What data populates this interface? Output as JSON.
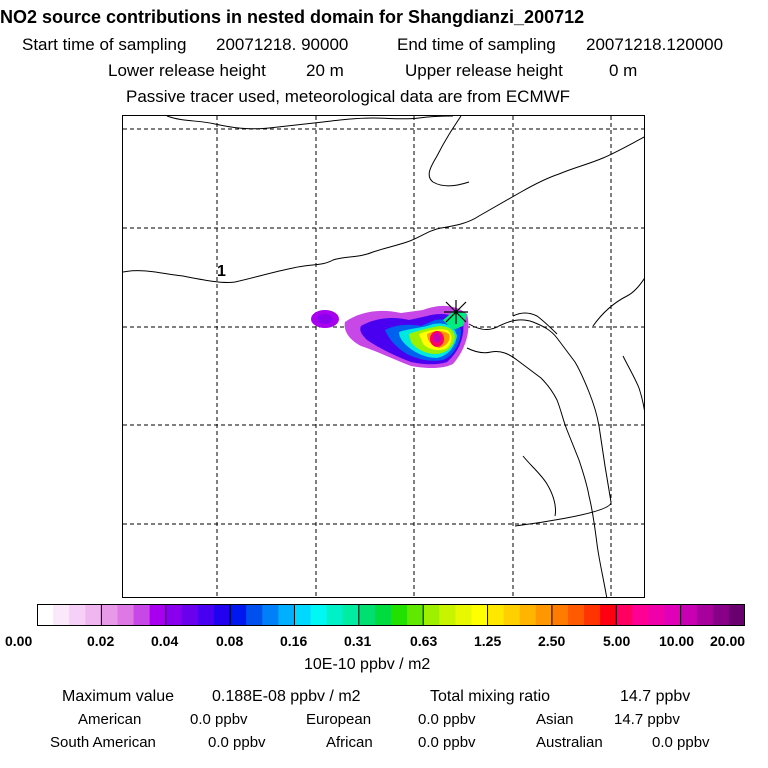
{
  "title": "NO2 source contributions in nested domain for Shangdianzi_200712",
  "header": {
    "start_label": "Start time of sampling",
    "start_value": "20071218. 90000",
    "end_label": "End time of sampling",
    "end_value": "20071218.120000",
    "lower_label": "Lower release height",
    "lower_value": "20 m",
    "upper_label": "Upper release height",
    "upper_value": "0 m",
    "note": "Passive tracer used, meteorological data are from ECMWF"
  },
  "chart_data": {
    "type": "heatmap",
    "title": "NO2 source contributions in nested domain for Shangdianzi_200712",
    "map_label": "1",
    "colorbar": {
      "ticks": [
        "0.00",
        "0.02",
        "0.04",
        "0.08",
        "0.16",
        "0.31",
        "0.63",
        "1.25",
        "2.50",
        "5.00",
        "10.00",
        "20.00"
      ],
      "unit": "10E-10 ppbv / m2",
      "colors": [
        [
          "#ffffff",
          "#fbe8fb",
          "#f6d0f6",
          "#f0b6f0"
        ],
        [
          "#e89ae8",
          "#de78e4",
          "#c748e6",
          "#a800ee"
        ],
        [
          "#8a00ee",
          "#6a00ee",
          "#4a00f0",
          "#2200f0"
        ],
        [
          "#0018f0",
          "#0050f0",
          "#0080f8",
          "#00b0ff"
        ],
        [
          "#00d8ff",
          "#00f8f4",
          "#00f0c8",
          "#00eca0"
        ],
        [
          "#00e070",
          "#00dc40",
          "#22e000",
          "#60e800"
        ],
        [
          "#9cf000",
          "#c8f400",
          "#e8f800",
          "#ffff00"
        ],
        [
          "#ffe800",
          "#ffd000",
          "#ffb400",
          "#ff9800"
        ],
        [
          "#ff7c00",
          "#ff5a00",
          "#ff3400",
          "#ff0010"
        ],
        [
          "#ff0060",
          "#ff0094",
          "#f000a8",
          "#e000b8"
        ],
        [
          "#c800b4",
          "#a8009c",
          "#880088",
          "#6a0070"
        ]
      ]
    }
  },
  "stats": {
    "max_label": "Maximum value",
    "max_value": "0.188E-08 ppbv / m2",
    "total_label": "Total mixing ratio",
    "total_value": "14.7 ppbv",
    "regions": [
      {
        "name": "American",
        "value": "0.0 ppbv"
      },
      {
        "name": "European",
        "value": "0.0 ppbv"
      },
      {
        "name": "Asian",
        "value": "14.7 ppbv"
      },
      {
        "name": "South American",
        "value": "0.0 ppbv"
      },
      {
        "name": "African",
        "value": "0.0 ppbv"
      },
      {
        "name": "Australian",
        "value": "0.0 ppbv"
      }
    ]
  }
}
